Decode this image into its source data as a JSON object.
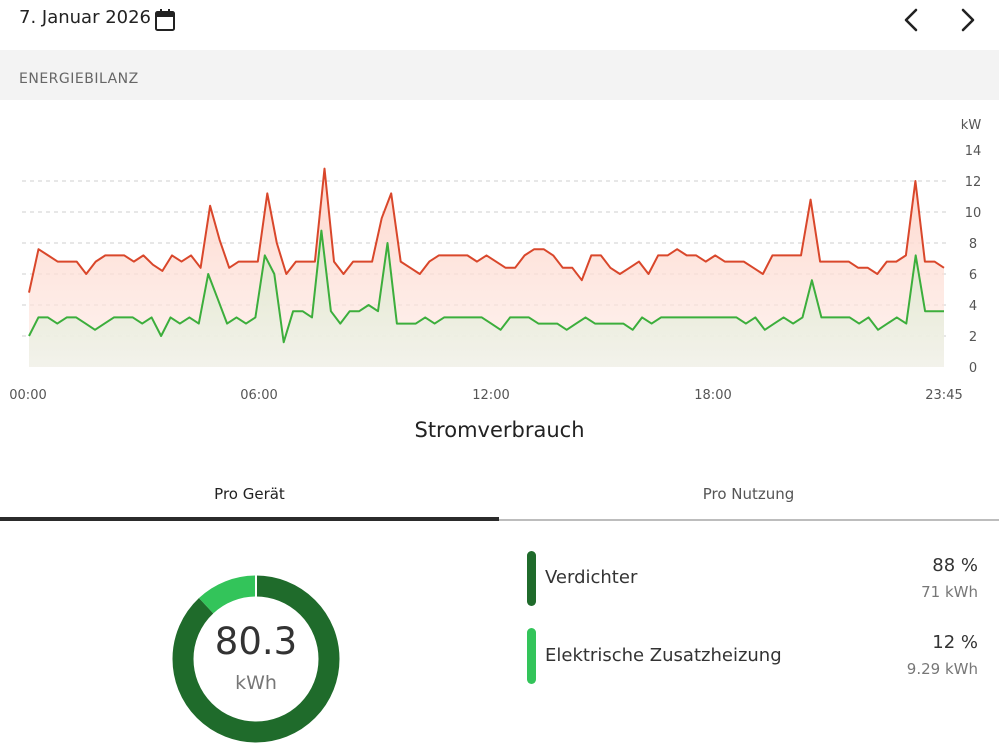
{
  "header": {
    "date": "7. Januar 2026",
    "icons": {
      "calendar": "calendar-icon",
      "prev": "chevron-left-icon",
      "next": "chevron-right-icon"
    }
  },
  "section": {
    "title": "ENERGIEBILANZ"
  },
  "chart_data": {
    "type": "area",
    "title": "",
    "ylabel": "kW",
    "ylim": [
      0,
      14
    ],
    "yticks": [
      "14",
      "12",
      "10",
      "8",
      "6",
      "4",
      "2",
      "0"
    ],
    "xticks": [
      "00:00",
      "06:00",
      "12:00",
      "18:00",
      "23:45"
    ],
    "grid": true,
    "x_range": [
      "00:00",
      "23:45"
    ],
    "series": [
      {
        "color": "#d9472b",
        "fill": "#ffd2c6",
        "values": [
          4.8,
          7.6,
          7.2,
          6.8,
          6.8,
          6.8,
          6.0,
          6.8,
          7.2,
          7.2,
          7.2,
          6.8,
          7.2,
          6.6,
          6.2,
          7.2,
          6.8,
          7.2,
          6.4,
          10.4,
          8.2,
          6.4,
          6.8,
          6.8,
          6.8,
          11.2,
          8.0,
          6.0,
          6.8,
          6.8,
          6.8,
          12.8,
          6.8,
          6.0,
          6.8,
          6.8,
          6.8,
          9.6,
          11.2,
          6.8,
          6.4,
          6.0,
          6.8,
          7.2,
          7.2,
          7.2,
          7.2,
          6.8,
          7.2,
          6.8,
          6.4,
          6.4,
          7.2,
          7.6,
          7.6,
          7.2,
          6.4,
          6.4,
          5.6,
          7.2,
          7.2,
          6.4,
          6.0,
          6.4,
          6.8,
          6.0,
          7.2,
          7.2,
          7.6,
          7.2,
          7.2,
          6.8,
          7.2,
          6.8,
          6.8,
          6.8,
          6.4,
          6.0,
          7.2,
          7.2,
          7.2,
          7.2,
          10.8,
          6.8,
          6.8,
          6.8,
          6.8,
          6.4,
          6.4,
          6.0,
          6.8,
          6.8,
          7.2,
          12.0,
          6.8,
          6.8,
          6.4
        ]
      },
      {
        "color": "#3cae3c",
        "fill": "#e9eedd",
        "values": [
          2.0,
          3.2,
          3.2,
          2.8,
          3.2,
          3.2,
          2.8,
          2.4,
          2.8,
          3.2,
          3.2,
          3.2,
          2.8,
          3.2,
          2.0,
          3.2,
          2.8,
          3.2,
          2.8,
          6.0,
          4.4,
          2.8,
          3.2,
          2.8,
          3.2,
          7.2,
          6.0,
          1.6,
          3.6,
          3.6,
          3.2,
          8.8,
          3.6,
          2.8,
          3.6,
          3.6,
          4.0,
          3.6,
          8.0,
          2.8,
          2.8,
          2.8,
          3.2,
          2.8,
          3.2,
          3.2,
          3.2,
          3.2,
          3.2,
          2.8,
          2.4,
          3.2,
          3.2,
          3.2,
          2.8,
          2.8,
          2.8,
          2.4,
          2.8,
          3.2,
          2.8,
          2.8,
          2.8,
          2.8,
          2.4,
          3.2,
          2.8,
          3.2,
          3.2,
          3.2,
          3.2,
          3.2,
          3.2,
          3.2,
          3.2,
          3.2,
          2.8,
          3.2,
          2.4,
          2.8,
          3.2,
          2.8,
          3.2,
          5.6,
          3.2,
          3.2,
          3.2,
          3.2,
          2.8,
          3.2,
          2.4,
          2.8,
          3.2,
          2.8,
          7.2,
          3.6,
          3.6,
          3.6
        ]
      }
    ]
  },
  "consumption": {
    "title": "Stromverbrauch",
    "tabs": [
      {
        "label": "Pro Gerät",
        "active": true
      },
      {
        "label": "Pro Nutzung",
        "active": false
      }
    ],
    "total_value": "80.3",
    "total_unit": "kWh",
    "items": [
      {
        "name": "Verdichter",
        "percent": "88 %",
        "energy": "71 kWh",
        "color": "#1f6b2b",
        "fraction": 0.88
      },
      {
        "name": "Elektrische Zusatzheizung",
        "percent": "12 %",
        "energy": "9.29 kWh",
        "color": "#33c45a",
        "fraction": 0.12
      }
    ]
  }
}
